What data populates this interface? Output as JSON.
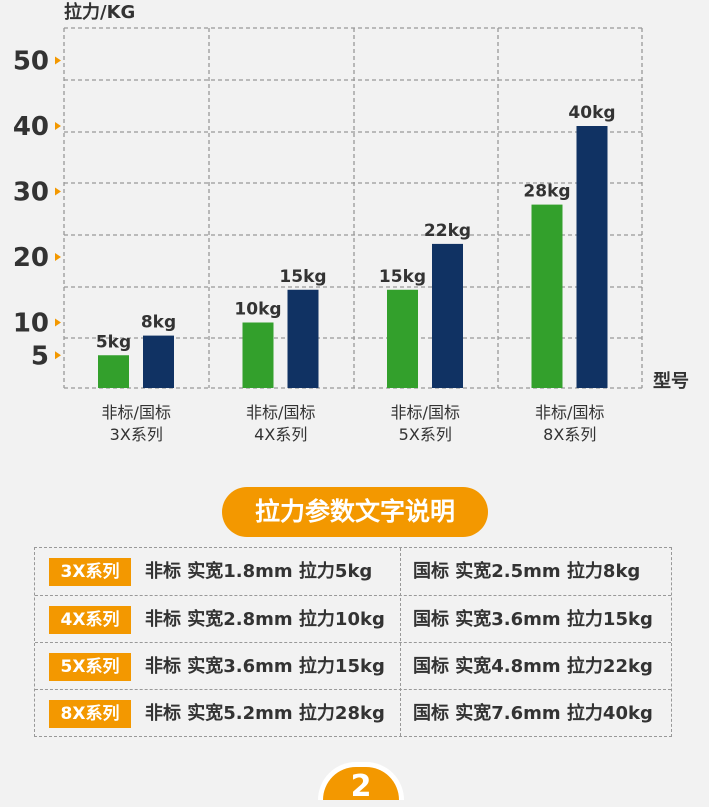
{
  "chart_data": {
    "type": "bar",
    "ylabel": "拉力/KG",
    "xlabel": "型号",
    "yticks": [
      5,
      10,
      20,
      30,
      40,
      50
    ],
    "ylim": [
      0,
      55
    ],
    "grid": true,
    "categories": [
      [
        "非标/国标",
        "3X系列"
      ],
      [
        "非标/国标",
        "4X系列"
      ],
      [
        "非标/国标",
        "5X系列"
      ],
      [
        "非标/国标",
        "8X系列"
      ]
    ],
    "series": [
      {
        "name": "非标",
        "color": "#33a02c",
        "values": [
          5,
          10,
          15,
          28
        ],
        "labels": [
          "5kg",
          "10kg",
          "15kg",
          "28kg"
        ]
      },
      {
        "name": "国标",
        "color": "#103263",
        "values": [
          8,
          15,
          22,
          40
        ],
        "labels": [
          "8kg",
          "15kg",
          "22kg",
          "40kg"
        ]
      }
    ]
  },
  "section_title": "拉力参数文字说明",
  "table": [
    {
      "series": "3X系列",
      "left": "非标  实宽1.8mm 拉力5kg",
      "right": "国标  实宽2.5mm 拉力8kg"
    },
    {
      "series": "4X系列",
      "left": "非标  实宽2.8mm 拉力10kg",
      "right": "国标  实宽3.6mm 拉力15kg"
    },
    {
      "series": "5X系列",
      "left": "非标  实宽3.6mm 拉力15kg",
      "right": "国标  实宽4.8mm 拉力22kg"
    },
    {
      "series": "8X系列",
      "left": "非标  实宽5.2mm 拉力28kg",
      "right": "国标  实宽7.6mm 拉力40kg"
    }
  ],
  "next_badge": "2"
}
